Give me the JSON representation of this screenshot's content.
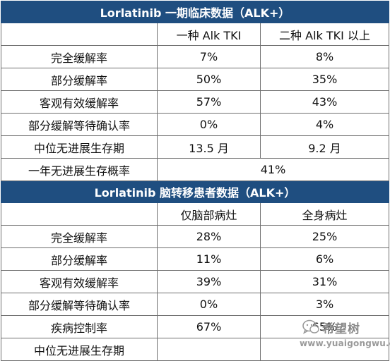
{
  "section1": {
    "title": "Lorlatinib 一期临床数据（ALK+）",
    "col1": "一种 Alk TKI",
    "col2": "二种 Alk TKI 以上",
    "rows": [
      {
        "label": "完全缓解率",
        "v1": "7%",
        "v2": "8%"
      },
      {
        "label": "部分缓解率",
        "v1": "50%",
        "v2": "35%"
      },
      {
        "label": "客观有效缓解率",
        "v1": "57%",
        "v2": "43%"
      },
      {
        "label": "部分缓解等待确认率",
        "v1": "0%",
        "v2": "4%"
      },
      {
        "label": "中位无进展生存期",
        "v1": "13.5 月",
        "v2": "9.2 月"
      }
    ],
    "merged_row": {
      "label": "一年无进展生存概率",
      "value": "41%"
    }
  },
  "section2": {
    "title": "Lorlatinib 脑转移患者数据（ALK+）",
    "col1": "仅脑部病灶",
    "col2": "全身病灶",
    "rows": [
      {
        "label": "完全缓解率",
        "v1": "28%",
        "v2": "25%"
      },
      {
        "label": "部分缓解率",
        "v1": "11%",
        "v2": "6%"
      },
      {
        "label": "客观有效缓解率",
        "v1": "39%",
        "v2": "31%"
      },
      {
        "label": "部分缓解等待确认率",
        "v1": "0%",
        "v2": "3%"
      },
      {
        "label": "疾病控制率",
        "v1": "67%",
        "v2": "65%"
      },
      {
        "label": "中位无进展生存期",
        "v1": "",
        "v2": ""
      }
    ]
  },
  "watermark": {
    "title": "希望树",
    "url": "www.yuaigongwu.com",
    "icon": "wechat-bubble-icon"
  },
  "colors": {
    "header_band": "#1f4e80",
    "border": "#6f6f6f"
  }
}
